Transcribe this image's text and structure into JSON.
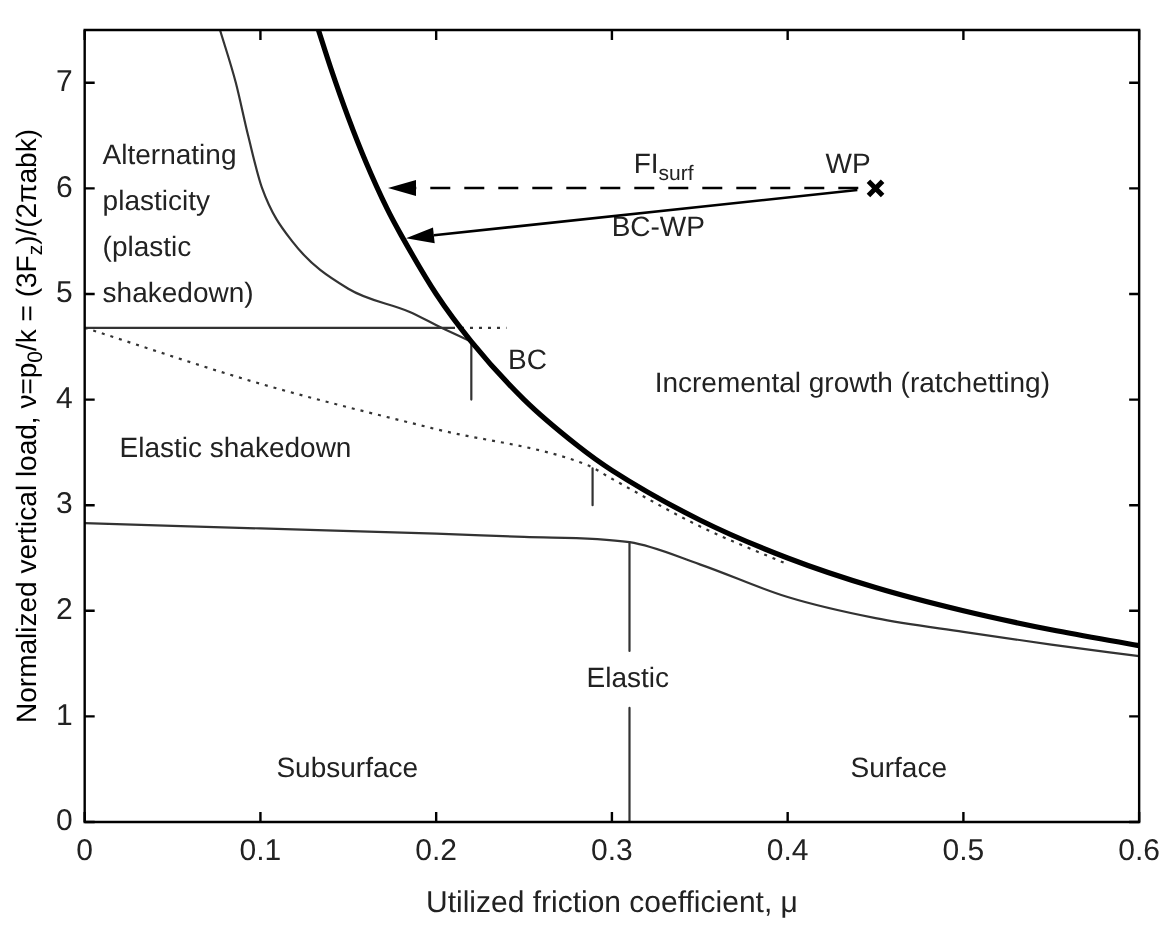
{
  "chart_data": {
    "type": "line",
    "xlabel": "Utilized friction coefficient, μ",
    "ylabel": "Normalized vertical load, ν=p$_{0}$/k = (3F$_{z}$)/(2πabk)",
    "xlim": [
      0,
      0.6
    ],
    "ylim": [
      0,
      7.5
    ],
    "xticks": [
      0,
      0.1,
      0.2,
      0.3,
      0.4,
      0.5,
      0.6
    ],
    "yticks": [
      0,
      1,
      2,
      3,
      4,
      5,
      6,
      7
    ],
    "grid": false,
    "legend": false,
    "series": [
      {
        "color": "#000000",
        "x": [
          0.133,
          0.14,
          0.15,
          0.16,
          0.172,
          0.18,
          0.2,
          0.22,
          0.25,
          0.28,
          0.3,
          0.35,
          0.4,
          0.45,
          0.5,
          0.55,
          0.6
        ],
        "values": [
          7.5,
          7.14,
          6.67,
          6.25,
          5.81,
          5.56,
          5.0,
          4.55,
          4.0,
          3.57,
          3.33,
          2.86,
          2.5,
          2.22,
          2.0,
          1.82,
          1.67
        ]
      },
      {
        "color": "#333333",
        "x": [
          0.077,
          0.086,
          0.093,
          0.101,
          0.118,
          0.15,
          0.185,
          0.203,
          0.22
        ],
        "values": [
          7.5,
          7.0,
          6.5,
          6.0,
          5.5,
          5.05,
          4.83,
          4.68,
          4.55
        ]
      },
      {
        "color": "#333333",
        "x": [
          0,
          0.209
        ],
        "values": [
          4.68,
          4.68
        ]
      },
      {
        "color": "#333333",
        "x": [
          0.209,
          0.24
        ],
        "values": [
          4.68,
          4.68
        ],
        "line_style": "dotted"
      },
      {
        "color": "#333333",
        "x": [
          0.22,
          0.22
        ],
        "values": [
          4.55,
          4.0
        ]
      },
      {
        "color": "#333333",
        "x": [
          0,
          0.1,
          0.2,
          0.286,
          0.3,
          0.35,
          0.4
        ],
        "values": [
          4.68,
          4.15,
          3.72,
          3.38,
          3.25,
          2.8,
          2.44
        ],
        "line_style": "dotted"
      },
      {
        "color": "#333333",
        "x": [
          0.289,
          0.289
        ],
        "values": [
          3.35,
          3.0
        ]
      },
      {
        "color": "#333333",
        "x": [
          0,
          0.1,
          0.2,
          0.25,
          0.31,
          0.35,
          0.4,
          0.45,
          0.5,
          0.55,
          0.6
        ],
        "values": [
          2.83,
          2.78,
          2.73,
          2.7,
          2.65,
          2.44,
          2.13,
          1.93,
          1.8,
          1.68,
          1.57
        ]
      },
      {
        "color": "#333333",
        "x": [
          0.31,
          0.31
        ],
        "values": [
          2.65,
          1.62
        ]
      },
      {
        "color": "#333333",
        "x": [
          0.31,
          0.31
        ],
        "values": [
          1.08,
          0
        ]
      },
      {
        "type": "scatter",
        "color": "#000000",
        "x": [
          0.45
        ],
        "values": [
          6.0
        ],
        "marker": "cross"
      }
    ],
    "annotations": [
      "Alternating plasticity (plastic shakedown)",
      "BC",
      "FI$_{surf}$",
      "WP",
      "BC-WP",
      "Incremental growth (ratchetting)",
      "Elastic shakedown",
      "Elastic",
      "Subsurface",
      "Surface"
    ]
  }
}
